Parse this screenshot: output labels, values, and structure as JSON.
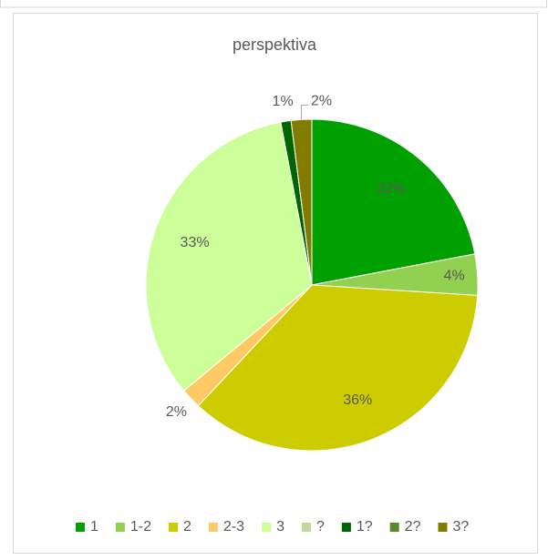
{
  "chart_data": {
    "type": "pie",
    "title": "perspektiva",
    "categories": [
      "1",
      "1-2",
      "2",
      "2-3",
      "3",
      "?",
      "1?",
      "2?",
      "3?"
    ],
    "values": [
      22,
      4,
      36,
      2,
      33,
      0,
      1,
      0,
      2
    ],
    "value_labels": [
      "22%",
      "4%",
      "36%",
      "2%",
      "33%",
      null,
      "1%",
      null,
      "2%"
    ],
    "colors": [
      "#00a000",
      "#92d050",
      "#cccc00",
      "#ffc966",
      "#ccff99",
      "#c4d79b",
      "#006400",
      "#5a8a2a",
      "#807c00"
    ],
    "legend": "bottom"
  }
}
